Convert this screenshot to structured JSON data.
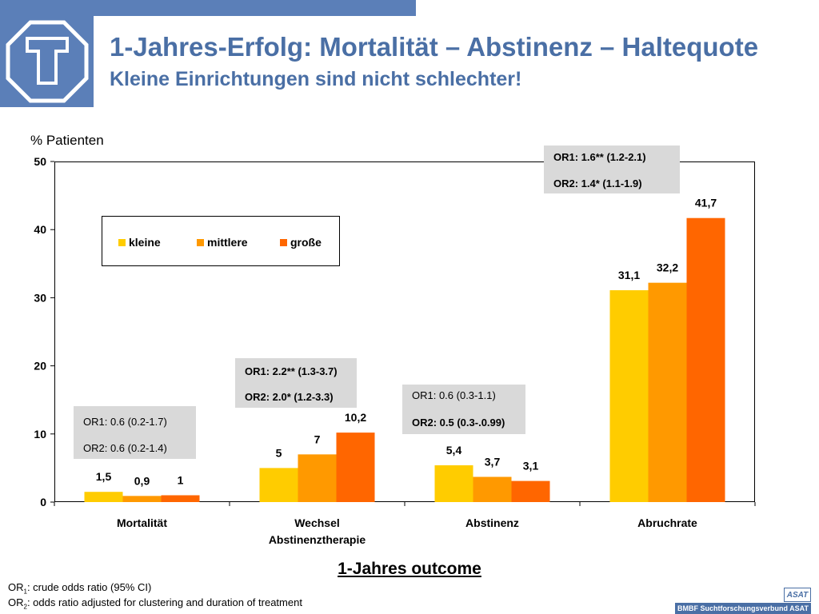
{
  "header": {
    "title": "1-Jahres-Erfolg: Mortalität – Abstinenz – Haltequote",
    "subtitle": "Kleine Einrichtungen sind nicht schlechter!"
  },
  "colors": {
    "brand": "#5b7fb8",
    "title": "#4a6fa5",
    "kleine": "#ffcc00",
    "mittlere": "#ff9900",
    "grosse": "#ff6600",
    "or_box": "#d9d9d9"
  },
  "chart_data": {
    "type": "bar",
    "ylabel": "% Patienten",
    "xlabel": "1-Jahres outcome",
    "ylim": [
      0,
      50
    ],
    "yticks": [
      "0",
      "10",
      "20",
      "30",
      "40",
      "50"
    ],
    "categories": [
      "Mortalität",
      "Wechsel Abstinenztherapie",
      "Abstinenz",
      "Abruchrate"
    ],
    "category_labels": [
      [
        "Mortalität"
      ],
      [
        "Wechsel",
        "Abstinenztherapie"
      ],
      [
        "Abstinenz"
      ],
      [
        "Abruchrate"
      ]
    ],
    "series": [
      {
        "name": "kleine",
        "values": [
          1.5,
          5,
          5.4,
          31.1
        ],
        "labels": [
          "1,5",
          "5",
          "5,4",
          "31,1"
        ]
      },
      {
        "name": "mittlere",
        "values": [
          0.9,
          7,
          3.7,
          32.2
        ],
        "labels": [
          "0,9",
          "7",
          "3,7",
          "32,2"
        ]
      },
      {
        "name": "große",
        "values": [
          1,
          10.2,
          3.1,
          41.7
        ],
        "labels": [
          "1",
          "10,2",
          "3,1",
          "41,7"
        ]
      }
    ],
    "legend_position": "top-left",
    "grid": false
  },
  "annotations": [
    {
      "or1": "OR1: 0.6 (0.2-1.7)",
      "or2": "OR2: 0.6 (0.2-1.4)"
    },
    {
      "or1": "OR1: 2.2** (1.3-3.7)",
      "or2": "OR2: 2.0* (1.2-3.3)"
    },
    {
      "or1": "OR1: 0.6 (0.3-1.1)",
      "or2": "OR2: 0.5 (0.3-.0.99)"
    },
    {
      "or1": "OR1: 1.6** (1.2-2.1)",
      "or2": "OR2: 1.4* (1.1-1.9)"
    }
  ],
  "footnotes": {
    "or1_prefix": "OR",
    "or1_sub": "1",
    "or1_text": ": crude odds ratio (95% CI)",
    "or2_prefix": "OR",
    "or2_sub": "2",
    "or2_text": ": odds ratio adjusted for clustering and duration of  treatment"
  },
  "branding": {
    "asat": "ASAT",
    "footer": "BMBF Suchtforschungsverbund ASAT"
  }
}
